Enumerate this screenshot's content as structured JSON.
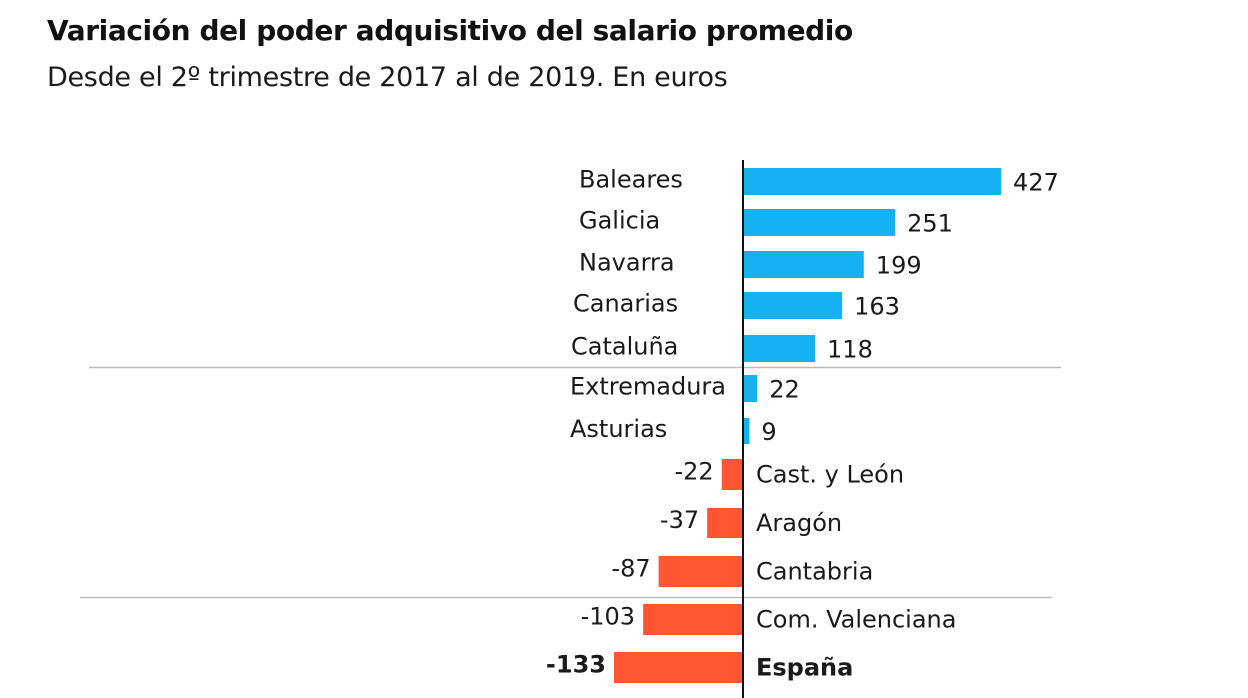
{
  "header": {
    "title": "Variación del poder adquisitivo del salario promedio",
    "subtitle": "Desde el 2º trimestre de 2017 al de 2019. En euros"
  },
  "chart_data": {
    "type": "bar",
    "orientation": "horizontal",
    "title": "Variación del poder adquisitivo del salario promedio",
    "subtitle": "Desde el 2º trimestre de 2017 al de 2019. En euros",
    "xlabel": "",
    "ylabel": "",
    "unit": "euros",
    "grid": false,
    "legend": "none",
    "categories": [
      "Baleares",
      "Galicia",
      "Navarra",
      "Canarias",
      "Cataluña",
      "Extremadura",
      "Asturias",
      "Cast. y León",
      "Aragón",
      "Cantabria",
      "Com. Valenciana",
      "España"
    ],
    "values": [
      427,
      251,
      199,
      163,
      118,
      22,
      9,
      -22,
      -37,
      -87,
      -103,
      -133
    ],
    "value_labels": [
      "427",
      "251",
      "199",
      "163",
      "118",
      "22",
      "9",
      "-22",
      "-37",
      "-87",
      "-103",
      "-133"
    ],
    "highlight": [
      "España"
    ],
    "separators_after": [
      "Cataluña",
      "Cantabria"
    ],
    "colors": {
      "positive": "#14b0f0",
      "negative": "#ff5533",
      "axis": "#111111",
      "separator": "#bbbbbb"
    }
  }
}
